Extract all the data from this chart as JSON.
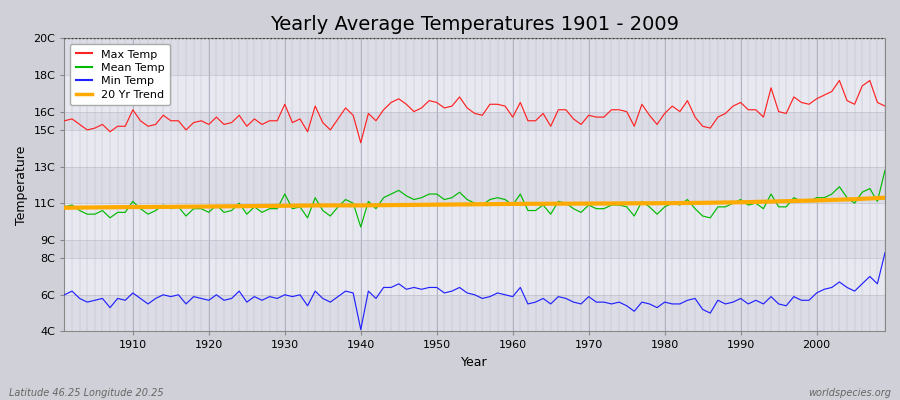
{
  "title": "Yearly Average Temperatures 1901 - 2009",
  "xlabel": "Year",
  "ylabel": "Temperature",
  "subtitle_left": "Latitude 46.25 Longitude 20.25",
  "subtitle_right": "worldspecies.org",
  "years": [
    1901,
    1902,
    1903,
    1904,
    1905,
    1906,
    1907,
    1908,
    1909,
    1910,
    1911,
    1912,
    1913,
    1914,
    1915,
    1916,
    1917,
    1918,
    1919,
    1920,
    1921,
    1922,
    1923,
    1924,
    1925,
    1926,
    1927,
    1928,
    1929,
    1930,
    1931,
    1932,
    1933,
    1934,
    1935,
    1936,
    1937,
    1938,
    1939,
    1940,
    1941,
    1942,
    1943,
    1944,
    1945,
    1946,
    1947,
    1948,
    1949,
    1950,
    1951,
    1952,
    1953,
    1954,
    1955,
    1956,
    1957,
    1958,
    1959,
    1960,
    1961,
    1962,
    1963,
    1964,
    1965,
    1966,
    1967,
    1968,
    1969,
    1970,
    1971,
    1972,
    1973,
    1974,
    1975,
    1976,
    1977,
    1978,
    1979,
    1980,
    1981,
    1982,
    1983,
    1984,
    1985,
    1986,
    1987,
    1988,
    1989,
    1990,
    1991,
    1992,
    1993,
    1994,
    1995,
    1996,
    1997,
    1998,
    1999,
    2000,
    2001,
    2002,
    2003,
    2004,
    2005,
    2006,
    2007,
    2008,
    2009
  ],
  "max_temp": [
    15.5,
    15.6,
    15.3,
    15.0,
    15.1,
    15.3,
    14.9,
    15.2,
    15.2,
    16.1,
    15.5,
    15.2,
    15.3,
    15.8,
    15.5,
    15.5,
    15.0,
    15.4,
    15.5,
    15.3,
    15.7,
    15.3,
    15.4,
    15.8,
    15.2,
    15.6,
    15.3,
    15.5,
    15.5,
    16.4,
    15.4,
    15.6,
    14.9,
    16.3,
    15.4,
    15.0,
    15.6,
    16.2,
    15.8,
    14.3,
    15.9,
    15.5,
    16.1,
    16.5,
    16.7,
    16.4,
    16.0,
    16.2,
    16.6,
    16.5,
    16.2,
    16.3,
    16.8,
    16.2,
    15.9,
    15.8,
    16.4,
    16.4,
    16.3,
    15.7,
    16.5,
    15.5,
    15.5,
    15.9,
    15.2,
    16.1,
    16.1,
    15.6,
    15.3,
    15.8,
    15.7,
    15.7,
    16.1,
    16.1,
    16.0,
    15.2,
    16.4,
    15.8,
    15.3,
    15.9,
    16.3,
    16.0,
    16.6,
    15.7,
    15.2,
    15.1,
    15.7,
    15.9,
    16.3,
    16.5,
    16.1,
    16.1,
    15.7,
    17.3,
    16.0,
    15.9,
    16.8,
    16.5,
    16.4,
    16.7,
    16.9,
    17.1,
    17.7,
    16.6,
    16.4,
    17.4,
    17.7,
    16.5,
    16.3
  ],
  "mean_temp": [
    10.8,
    10.9,
    10.6,
    10.4,
    10.4,
    10.6,
    10.2,
    10.5,
    10.5,
    11.1,
    10.7,
    10.4,
    10.6,
    10.9,
    10.7,
    10.8,
    10.3,
    10.7,
    10.7,
    10.5,
    10.9,
    10.5,
    10.6,
    11.0,
    10.4,
    10.8,
    10.5,
    10.7,
    10.7,
    11.5,
    10.7,
    10.8,
    10.2,
    11.3,
    10.6,
    10.3,
    10.8,
    11.2,
    11.0,
    9.7,
    11.1,
    10.7,
    11.3,
    11.5,
    11.7,
    11.4,
    11.2,
    11.3,
    11.5,
    11.5,
    11.2,
    11.3,
    11.6,
    11.2,
    11.0,
    10.9,
    11.2,
    11.3,
    11.2,
    10.9,
    11.5,
    10.6,
    10.6,
    10.9,
    10.4,
    11.1,
    11.0,
    10.7,
    10.5,
    10.9,
    10.7,
    10.7,
    10.9,
    10.9,
    10.8,
    10.3,
    11.1,
    10.8,
    10.4,
    10.8,
    11.0,
    10.9,
    11.2,
    10.7,
    10.3,
    10.2,
    10.8,
    10.8,
    11.0,
    11.2,
    10.9,
    11.0,
    10.7,
    11.5,
    10.8,
    10.8,
    11.3,
    11.1,
    11.1,
    11.3,
    11.3,
    11.5,
    11.9,
    11.3,
    11.0,
    11.6,
    11.8,
    11.1,
    12.8
  ],
  "min_temp": [
    6.0,
    6.2,
    5.8,
    5.6,
    5.7,
    5.8,
    5.3,
    5.8,
    5.7,
    6.1,
    5.8,
    5.5,
    5.8,
    6.0,
    5.9,
    6.0,
    5.5,
    5.9,
    5.8,
    5.7,
    6.0,
    5.7,
    5.8,
    6.2,
    5.6,
    5.9,
    5.7,
    5.9,
    5.8,
    6.0,
    5.9,
    6.0,
    5.4,
    6.2,
    5.8,
    5.6,
    5.9,
    6.2,
    6.1,
    4.1,
    6.2,
    5.8,
    6.4,
    6.4,
    6.6,
    6.3,
    6.4,
    6.3,
    6.4,
    6.4,
    6.1,
    6.2,
    6.4,
    6.1,
    6.0,
    5.8,
    5.9,
    6.1,
    6.0,
    5.9,
    6.4,
    5.5,
    5.6,
    5.8,
    5.5,
    5.9,
    5.8,
    5.6,
    5.5,
    5.9,
    5.6,
    5.6,
    5.5,
    5.6,
    5.4,
    5.1,
    5.6,
    5.5,
    5.3,
    5.6,
    5.5,
    5.5,
    5.7,
    5.8,
    5.2,
    5.0,
    5.7,
    5.5,
    5.6,
    5.8,
    5.5,
    5.7,
    5.5,
    5.9,
    5.5,
    5.4,
    5.9,
    5.7,
    5.7,
    6.1,
    6.3,
    6.4,
    6.7,
    6.4,
    6.2,
    6.6,
    7.0,
    6.6,
    8.3
  ],
  "trend_years": [
    1901,
    1905,
    1910,
    1915,
    1920,
    1925,
    1930,
    1935,
    1940,
    1945,
    1950,
    1955,
    1960,
    1965,
    1970,
    1975,
    1980,
    1985,
    1990,
    1995,
    2000,
    2005,
    2009
  ],
  "trend_vals": [
    10.75,
    10.77,
    10.79,
    10.8,
    10.82,
    10.84,
    10.86,
    10.88,
    10.88,
    10.9,
    10.92,
    10.94,
    10.96,
    10.97,
    10.98,
    10.99,
    11.0,
    11.02,
    11.05,
    11.1,
    11.15,
    11.22,
    11.3
  ],
  "ylim_min": 4,
  "ylim_max": 20,
  "yticks": [
    4,
    6,
    8,
    9,
    11,
    13,
    15,
    16,
    18,
    20
  ],
  "ytick_labels": [
    "4C",
    "6C",
    "8C",
    "9C",
    "11C",
    "13C",
    "15C",
    "16C",
    "18C",
    "20C"
  ],
  "xticks": [
    1910,
    1920,
    1930,
    1940,
    1950,
    1960,
    1970,
    1980,
    1990,
    2000
  ],
  "max_color": "#ff2222",
  "mean_color": "#00bb00",
  "min_color": "#2222ff",
  "trend_color": "#ffaa00",
  "band_colors": [
    "#e8e8ee",
    "#dcdce4"
  ],
  "bg_color": "#d8d8d8",
  "plot_bg_color": "#e0e0e8",
  "grid_color": "#c0c0cc",
  "dotted_line_color": "#333333",
  "title_fontsize": 14,
  "legend_fontsize": 8,
  "axis_label_fontsize": 9,
  "tick_fontsize": 8
}
